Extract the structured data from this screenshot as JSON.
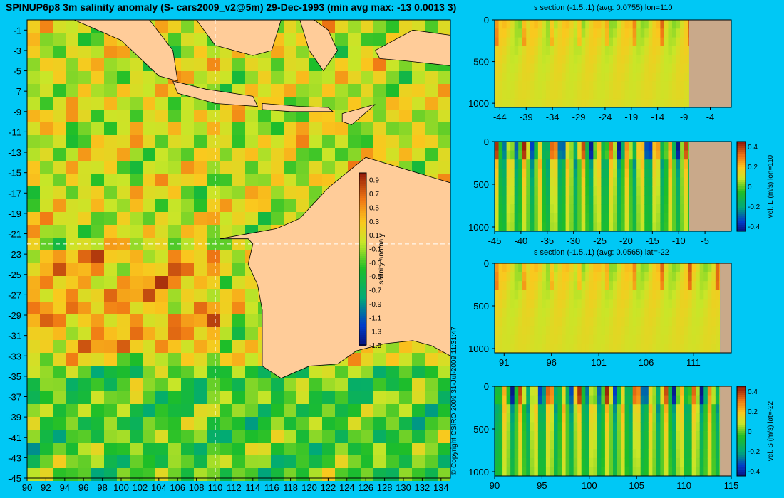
{
  "title": "SPINUP6p8 3m salinity anomaly (S- cars2009_v2@5m) 29-Dec-1993 (min avg max: -13 0.0013 3)",
  "copyright": "© Copyright CSIRO 2009  31-Jul-2009 11:31:47",
  "colors": {
    "background": "#00c8f5",
    "land_map": "#ffcc99",
    "land_section": "#c9a98a",
    "frame": "#000000",
    "crosshair": "#ffffff"
  },
  "chart_data": [
    {
      "type": "heatmap",
      "title": "SPINUP6p8 3m salinity anomaly (S- cars2009_v2@5m) 29-Dec-1993 (min avg max: -13 0.0013 3)",
      "xlabel": "",
      "ylabel": "",
      "xlim": [
        90,
        135
      ],
      "ylim": [
        -45,
        0
      ],
      "x_ticks": [
        "90",
        "92",
        "94",
        "96",
        "98",
        "100",
        "102",
        "104",
        "106",
        "108",
        "110",
        "112",
        "114",
        "116",
        "118",
        "120",
        "122",
        "124",
        "126",
        "128",
        "130",
        "132",
        "134"
      ],
      "y_ticks": [
        "-1",
        "-3",
        "-5",
        "-7",
        "-9",
        "-11",
        "-13",
        "-15",
        "-17",
        "-19",
        "-21",
        "-23",
        "-25",
        "-27",
        "-29",
        "-31",
        "-33",
        "-35",
        "-37",
        "-39",
        "-41",
        "-43",
        "-45"
      ],
      "crosshair": {
        "lon": 110,
        "lat": -22
      },
      "colorbar": {
        "label": "salinity anomaly",
        "ticks": [
          "0.9",
          "0.7",
          "0.5",
          "0.3",
          "0.1",
          "-0.1",
          "-0.3",
          "-0.5",
          "-0.7",
          "-0.9",
          "-1.1",
          "-1.3",
          "-1.5"
        ],
        "range": [
          -1.5,
          1.0
        ]
      }
    },
    {
      "type": "heatmap",
      "title": "s section (-1.5..1) (avg: 0.0755) lon=110",
      "xlabel": "",
      "ylabel": "",
      "xlim": [
        -45,
        0
      ],
      "ylim": [
        1050,
        0
      ],
      "x_ticks": [
        "-44",
        "-39",
        "-34",
        "-29",
        "-24",
        "-19",
        "-14",
        "-9",
        "-4"
      ],
      "y_ticks": [
        "0",
        "500",
        "1000"
      ],
      "land_from_x": -8
    },
    {
      "type": "heatmap",
      "title": "",
      "xlabel": "",
      "ylabel": "",
      "xlim": [
        -45,
        0
      ],
      "ylim": [
        1050,
        0
      ],
      "x_ticks": [
        "-45",
        "-40",
        "-35",
        "-30",
        "-25",
        "-20",
        "-15",
        "-10",
        "-5"
      ],
      "y_ticks": [
        "0",
        "500",
        "1000"
      ],
      "land_from_x": -8,
      "colorbar": {
        "label": "vel. E (m/s) lon=110",
        "ticks": [
          "0.4",
          "0.2",
          "0",
          "-0.2",
          "-0.4"
        ],
        "range": [
          -0.45,
          0.45
        ]
      }
    },
    {
      "type": "heatmap",
      "title": "s section (-1.5..1) (avg: 0.0565) lat=-22",
      "xlabel": "",
      "ylabel": "",
      "xlim": [
        90,
        115
      ],
      "ylim": [
        1050,
        0
      ],
      "x_ticks": [
        "91",
        "96",
        "101",
        "106",
        "111"
      ],
      "y_ticks": [
        "0",
        "500",
        "1000"
      ],
      "land_from_x": 113.8
    },
    {
      "type": "heatmap",
      "title": "",
      "xlabel": "",
      "ylabel": "",
      "xlim": [
        90,
        115
      ],
      "ylim": [
        1050,
        0
      ],
      "x_ticks": [
        "90",
        "95",
        "100",
        "105",
        "110",
        "115"
      ],
      "y_ticks": [
        "0",
        "500",
        "1000"
      ],
      "land_from_x": 113.8,
      "colorbar": {
        "label": "vel. S (m/s) lat=-22",
        "ticks": [
          "0.4",
          "0.2",
          "0",
          "-0.2",
          "-0.4"
        ],
        "range": [
          -0.45,
          0.45
        ]
      }
    }
  ]
}
